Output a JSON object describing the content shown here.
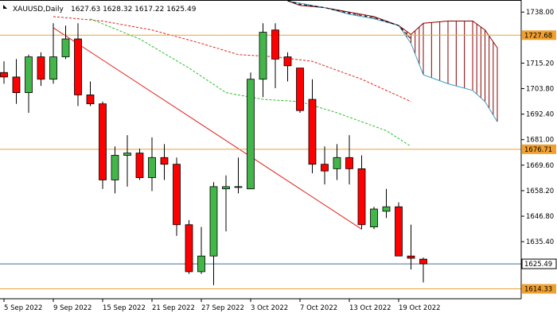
{
  "header": {
    "symbol": "XAUUSD,Daily",
    "ohlc": "1627.63 1628.32 1617.22 1625.49"
  },
  "colors": {
    "bull": "#43b649",
    "bear": "#ff0000",
    "candle_outline": "#000000",
    "trendline": "#e0231b",
    "level_line": "#e8a33a",
    "bid_line": "#4a6d8c",
    "ma_red": "#e0231b",
    "ma_green": "#2dbf2d",
    "cloud_line": "#3aa0c8",
    "cloud_hatch": "#8b0000",
    "cloud_dash": "#000000",
    "level_label_bg": "#f0a030",
    "price_label_bg": "#ffffff"
  },
  "chart_data": {
    "type": "candlestick",
    "ylim": [
      1609.9,
      1743.4
    ],
    "y_ticks": [
      {
        "value": 1738.0,
        "label": "1738.00"
      },
      {
        "value": 1715.2,
        "label": "1715.20"
      },
      {
        "value": 1703.8,
        "label": "1703.80"
      },
      {
        "value": 1692.4,
        "label": "1692.40"
      },
      {
        "value": 1681.0,
        "label": "1681.00"
      },
      {
        "value": 1669.6,
        "label": "1669.60"
      },
      {
        "value": 1658.2,
        "label": "1658.20"
      },
      {
        "value": 1646.8,
        "label": "1646.80"
      },
      {
        "value": 1635.4,
        "label": "1635.40"
      }
    ],
    "x_labels": [
      {
        "index": 0,
        "label": "5 Sep 2022"
      },
      {
        "index": 4,
        "label": "9 Sep 2022"
      },
      {
        "index": 8,
        "label": "15 Sep 2022"
      },
      {
        "index": 12,
        "label": "21 Sep 2022"
      },
      {
        "index": 16,
        "label": "27 Sep 2022"
      },
      {
        "index": 20,
        "label": "3 Oct 2022"
      },
      {
        "index": 24,
        "label": "7 Oct 2022"
      },
      {
        "index": 28,
        "label": "13 Oct 2022"
      },
      {
        "index": 32,
        "label": "19 Oct 2022"
      }
    ],
    "candles": [
      {
        "o": 1711.0,
        "h": 1716.0,
        "l": 1706.0,
        "c": 1709.0
      },
      {
        "o": 1709.0,
        "h": 1717.0,
        "l": 1697.0,
        "c": 1702.0
      },
      {
        "o": 1702.0,
        "h": 1719.0,
        "l": 1693.0,
        "c": 1718.0
      },
      {
        "o": 1718.0,
        "h": 1720.0,
        "l": 1705.0,
        "c": 1708.0
      },
      {
        "o": 1708.0,
        "h": 1733.0,
        "l": 1706.0,
        "c": 1718.0
      },
      {
        "o": 1718.0,
        "h": 1732.0,
        "l": 1717.0,
        "c": 1726.0
      },
      {
        "o": 1726.0,
        "h": 1733.0,
        "l": 1696.0,
        "c": 1701.0
      },
      {
        "o": 1701.0,
        "h": 1707.0,
        "l": 1696.0,
        "c": 1697.0
      },
      {
        "o": 1697.0,
        "h": 1698.0,
        "l": 1659.0,
        "c": 1663.0
      },
      {
        "o": 1663.0,
        "h": 1678.0,
        "l": 1657.0,
        "c": 1674.0
      },
      {
        "o": 1674.0,
        "h": 1683.0,
        "l": 1660.0,
        "c": 1675.0
      },
      {
        "o": 1675.0,
        "h": 1677.0,
        "l": 1663.0,
        "c": 1664.0
      },
      {
        "o": 1664.0,
        "h": 1682.0,
        "l": 1658.0,
        "c": 1673.0
      },
      {
        "o": 1673.0,
        "h": 1679.0,
        "l": 1663.0,
        "c": 1670.0
      },
      {
        "o": 1670.0,
        "h": 1673.0,
        "l": 1638.0,
        "c": 1643.0
      },
      {
        "o": 1643.0,
        "h": 1645.0,
        "l": 1621.0,
        "c": 1622.0
      },
      {
        "o": 1622.0,
        "h": 1642.0,
        "l": 1621.0,
        "c": 1629.0
      },
      {
        "o": 1629.0,
        "h": 1662.0,
        "l": 1616.0,
        "c": 1660.0
      },
      {
        "o": 1659.0,
        "h": 1665.0,
        "l": 1640.0,
        "c": 1660.0
      },
      {
        "o": 1660.0,
        "h": 1673.0,
        "l": 1657.0,
        "c": 1660.0
      },
      {
        "o": 1659.0,
        "h": 1711.0,
        "l": 1659.0,
        "c": 1708.0
      },
      {
        "o": 1708.0,
        "h": 1733.0,
        "l": 1700.0,
        "c": 1729.0
      },
      {
        "o": 1730.0,
        "h": 1733.0,
        "l": 1704.0,
        "c": 1717.0
      },
      {
        "o": 1718.0,
        "h": 1720.0,
        "l": 1707.0,
        "c": 1714.0
      },
      {
        "o": 1713.0,
        "h": 1712.0,
        "l": 1693.0,
        "c": 1694.0
      },
      {
        "o": 1699.0,
        "h": 1708.0,
        "l": 1666.0,
        "c": 1670.0
      },
      {
        "o": 1670.0,
        "h": 1678.0,
        "l": 1661.0,
        "c": 1667.0
      },
      {
        "o": 1668.0,
        "h": 1679.0,
        "l": 1663.0,
        "c": 1673.0
      },
      {
        "o": 1673.0,
        "h": 1683.0,
        "l": 1661.0,
        "c": 1668.0
      },
      {
        "o": 1668.0,
        "h": 1674.0,
        "l": 1641.0,
        "c": 1643.0
      },
      {
        "o": 1642.0,
        "h": 1651.0,
        "l": 1641.0,
        "c": 1650.0
      },
      {
        "o": 1649.0,
        "h": 1659.0,
        "l": 1646.0,
        "c": 1651.0
      },
      {
        "o": 1651.0,
        "h": 1653.0,
        "l": 1629.0,
        "c": 1629.0
      },
      {
        "o": 1629.0,
        "h": 1643.0,
        "l": 1623.0,
        "c": 1628.0
      },
      {
        "o": 1627.6,
        "h": 1628.3,
        "l": 1617.2,
        "c": 1625.5
      }
    ],
    "levels": [
      {
        "value": 1727.68,
        "label": "1727.68"
      },
      {
        "value": 1676.71,
        "label": "1676.71"
      },
      {
        "value": 1614.33,
        "label": "1614.33"
      }
    ],
    "current_price": {
      "value": 1625.49,
      "label": "1625.49"
    },
    "trendline": {
      "from": {
        "index": 4,
        "value": 1731.0
      },
      "to": {
        "index": 29,
        "value": 1641.0
      }
    },
    "ma_red": [
      {
        "i": 4,
        "v": 1736
      },
      {
        "i": 8,
        "v": 1734
      },
      {
        "i": 12,
        "v": 1730
      },
      {
        "i": 16,
        "v": 1724
      },
      {
        "i": 19,
        "v": 1719
      },
      {
        "i": 22,
        "v": 1718
      },
      {
        "i": 25,
        "v": 1716
      },
      {
        "i": 29,
        "v": 1708
      },
      {
        "i": 33,
        "v": 1698
      }
    ],
    "ma_green": [
      {
        "i": 7,
        "v": 1735
      },
      {
        "i": 11,
        "v": 1726
      },
      {
        "i": 15,
        "v": 1713
      },
      {
        "i": 18,
        "v": 1702
      },
      {
        "i": 21,
        "v": 1699
      },
      {
        "i": 24,
        "v": 1698
      },
      {
        "i": 27,
        "v": 1693
      },
      {
        "i": 31,
        "v": 1685
      },
      {
        "i": 33,
        "v": 1678
      }
    ],
    "cloud": {
      "upper": [
        {
          "i": 23,
          "v": 1743
        },
        {
          "i": 24,
          "v": 1741
        },
        {
          "i": 26,
          "v": 1740
        },
        {
          "i": 28,
          "v": 1738
        },
        {
          "i": 30,
          "v": 1736
        },
        {
          "i": 32,
          "v": 1732
        },
        {
          "i": 33,
          "v": 1728
        },
        {
          "i": 34,
          "v": 1733
        },
        {
          "i": 36,
          "v": 1734
        },
        {
          "i": 38,
          "v": 1734
        },
        {
          "i": 39,
          "v": 1730
        },
        {
          "i": 40,
          "v": 1722
        }
      ],
      "lower": [
        {
          "i": 23,
          "v": 1743
        },
        {
          "i": 24,
          "v": 1742
        },
        {
          "i": 26,
          "v": 1740
        },
        {
          "i": 28,
          "v": 1737
        },
        {
          "i": 30,
          "v": 1735
        },
        {
          "i": 32,
          "v": 1732
        },
        {
          "i": 33,
          "v": 1724
        },
        {
          "i": 34,
          "v": 1710
        },
        {
          "i": 36,
          "v": 1706
        },
        {
          "i": 38,
          "v": 1703
        },
        {
          "i": 39,
          "v": 1698
        },
        {
          "i": 40,
          "v": 1689
        }
      ]
    }
  }
}
